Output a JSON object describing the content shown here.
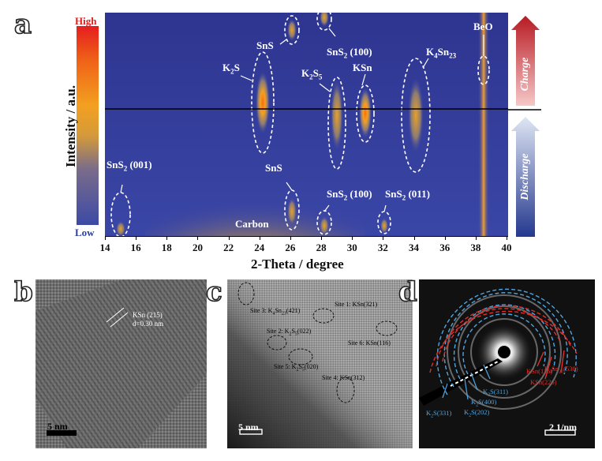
{
  "panel_a": {
    "letter": "a",
    "ylabel": "Intensity / a.u.",
    "xlabel": "2-Theta / degree",
    "colorbar": {
      "high": "High",
      "low": "Low"
    },
    "xticks": [
      "14",
      "16",
      "18",
      "20",
      "22",
      "24",
      "26",
      "28",
      "30",
      "32",
      "34",
      "36",
      "38",
      "40"
    ],
    "arrows": {
      "charge": "Charge",
      "discharge": "Discharge"
    },
    "colors": {
      "bg": "#3a3f9a",
      "hot": "#f3a020",
      "charge": "#c21f2b",
      "discharge": "#2e4aa0"
    },
    "annotations": {
      "sns2_001": {
        "main": "SnS",
        "sub": "2",
        "tail": " (001)"
      },
      "k2s": {
        "main": "K",
        "sub": "2",
        "tail": "S"
      },
      "sns_top": {
        "main": "SnS",
        "sub": "",
        "tail": ""
      },
      "sns2_100_top": {
        "main": "SnS",
        "sub": "2",
        "tail": " (100)"
      },
      "k2s5": {
        "main": "K",
        "sub": "2",
        "tail": "S",
        "sub2": "5"
      },
      "ksn": {
        "main": "KSn",
        "sub": "",
        "tail": ""
      },
      "k4sn23": {
        "main": "K",
        "sub": "4",
        "tail": "Sn",
        "sub2": "23"
      },
      "beo": {
        "main": "BeO",
        "sub": "",
        "tail": ""
      },
      "sns_bottom": {
        "main": "SnS",
        "sub": "",
        "tail": ""
      },
      "sns2_100_bottom": {
        "main": "SnS",
        "sub": "2",
        "tail": " (100)"
      },
      "sns2_011": {
        "main": "SnS",
        "sub": "2",
        "tail": " (011)"
      },
      "carbon": {
        "main": "Carbon",
        "sub": "",
        "tail": ""
      }
    }
  },
  "panel_b": {
    "letter": "b",
    "label1": "KSn (215)",
    "label2": "d=0.30 nm",
    "scalebar": "5 nm"
  },
  "panel_c": {
    "letter": "c",
    "site1": "Site 1: KSn(321)",
    "site2": {
      "pre": "Site 2: K",
      "sub": "2",
      "mid": "S",
      "sub2": "5",
      "post": "(022)"
    },
    "site3": {
      "pre": "Site 3: K",
      "sub": "4",
      "mid": "Sn",
      "sub2": "23",
      "post": "(421)"
    },
    "site4": "Site 4: KSn(312)",
    "site5": {
      "pre": "Site 5: K",
      "sub": "2",
      "mid": "S",
      "sub2": "5",
      "post": "(020)"
    },
    "site6": "Site 6: KSn(116)",
    "scalebar": "5 nm"
  },
  "panel_d": {
    "letter": "d",
    "blue_labels": [
      {
        "pre": "K",
        "sub": "2",
        "post": "S(311)"
      },
      {
        "pre": "K",
        "sub": "2",
        "post": "S(400)"
      },
      {
        "pre": "K",
        "sub": "2",
        "post": "S(202)"
      },
      {
        "pre": "K",
        "sub": "2",
        "post": "S(331)"
      }
    ],
    "red_labels": [
      {
        "pre": "KSn(116)",
        "sub": "",
        "post": ""
      },
      {
        "pre": "KSn(226)",
        "sub": "",
        "post": ""
      },
      {
        "pre": "K",
        "sub": "4",
        "post": "Sn",
        "sub2": "23",
        "post2": "(530)"
      }
    ],
    "colors": {
      "blue": "#4fa6e0",
      "red": "#e0302a"
    },
    "scalebar": "2 1/nm"
  }
}
